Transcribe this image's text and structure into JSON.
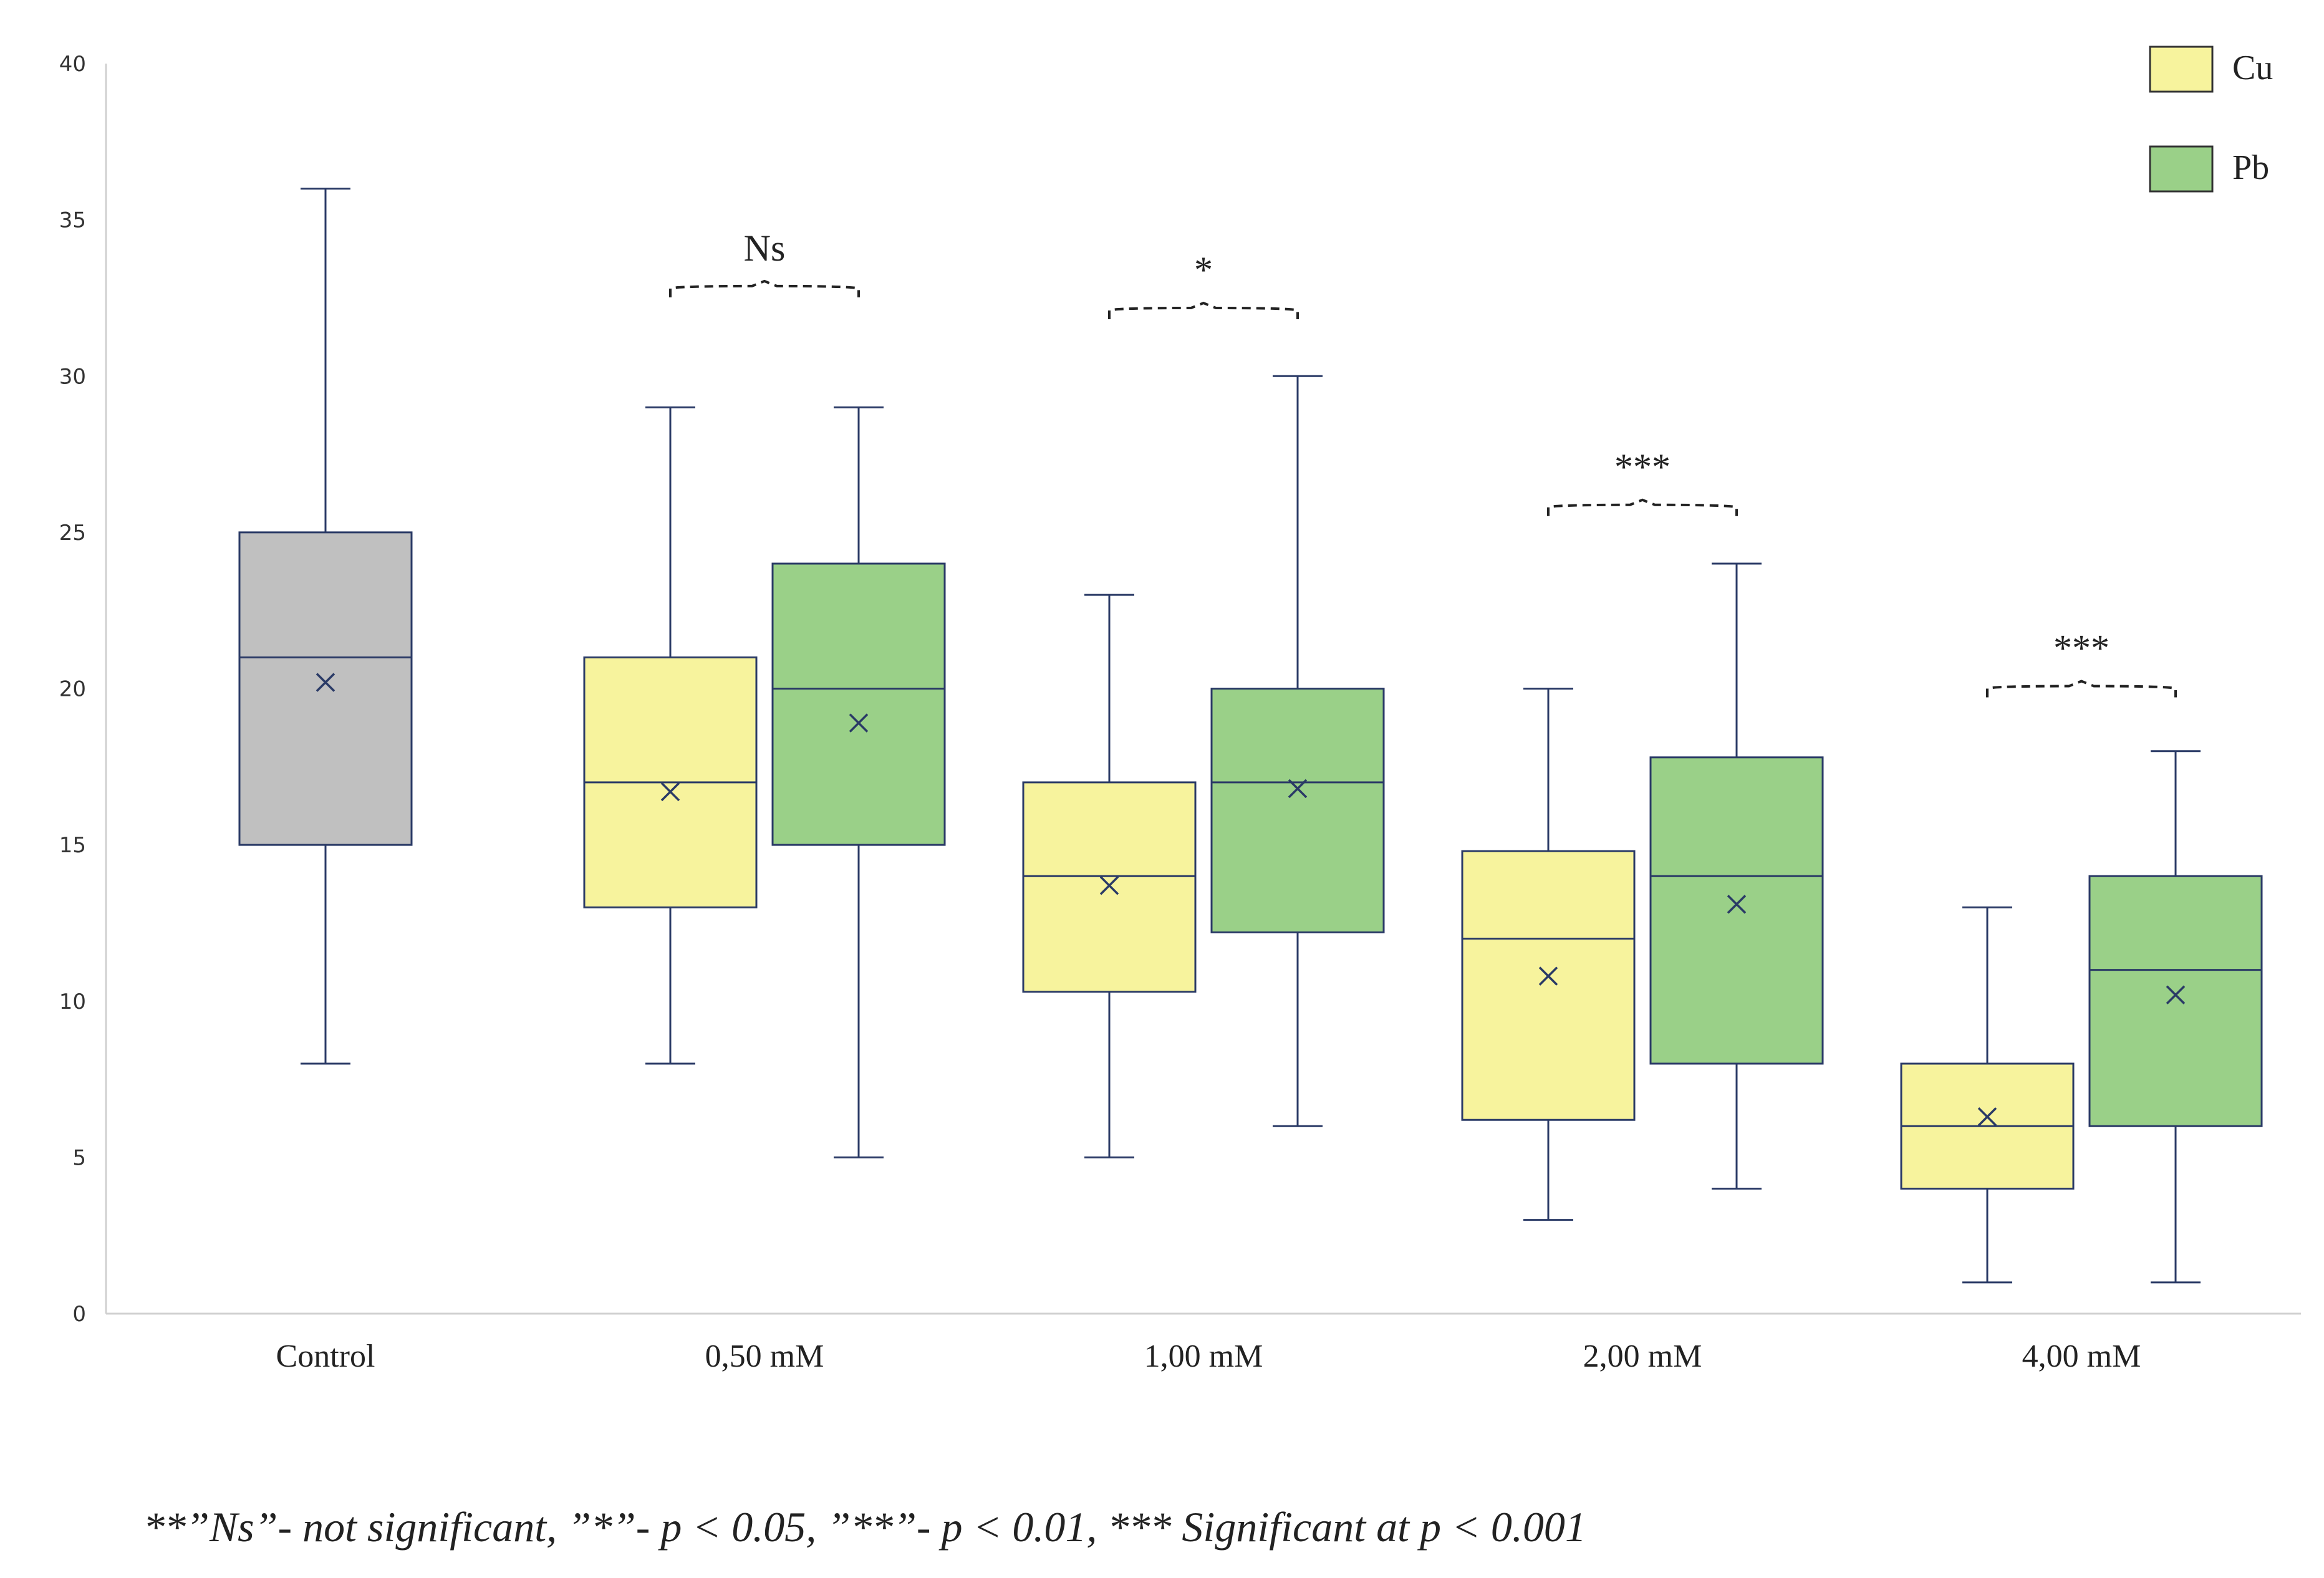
{
  "chart_data": {
    "type": "box",
    "ylim": [
      0,
      40
    ],
    "yticks": [
      0,
      5,
      10,
      15,
      20,
      25,
      30,
      35,
      40
    ],
    "categories": [
      "Control",
      "0,50 mM",
      "1,00 mM",
      "2,00 mM",
      "4,00 mM"
    ],
    "legend": {
      "position": "top-right",
      "entries": [
        {
          "label": "Cu",
          "color": "#f7f39d"
        },
        {
          "label": "Pb",
          "color": "#9ad088"
        }
      ]
    },
    "control_color": "#c0c0c0",
    "boxes": [
      {
        "category": "Control",
        "series": "",
        "min": 8,
        "q1": 15,
        "median": 21,
        "q3": 25,
        "max": 36,
        "mean": 20.2
      },
      {
        "category": "0,50 mM",
        "series": "Cu",
        "min": 8,
        "q1": 13,
        "median": 17,
        "q3": 21,
        "max": 29,
        "mean": 16.7
      },
      {
        "category": "0,50 mM",
        "series": "Pb",
        "min": 5,
        "q1": 15,
        "median": 20,
        "q3": 24,
        "max": 29,
        "mean": 18.9
      },
      {
        "category": "1,00 mM",
        "series": "Cu",
        "min": 5,
        "q1": 10.3,
        "median": 14,
        "q3": 17,
        "max": 23,
        "mean": 13.7
      },
      {
        "category": "1,00 mM",
        "series": "Pb",
        "min": 6,
        "q1": 12.2,
        "median": 17,
        "q3": 20,
        "max": 30,
        "mean": 16.8
      },
      {
        "category": "2,00 mM",
        "series": "Cu",
        "min": 3,
        "q1": 6.2,
        "median": 12,
        "q3": 14.8,
        "max": 20,
        "mean": 10.8
      },
      {
        "category": "2,00 mM",
        "series": "Pb",
        "min": 4,
        "q1": 8,
        "median": 14,
        "q3": 17.8,
        "max": 24,
        "mean": 13.1
      },
      {
        "category": "4,00 mM",
        "series": "Cu",
        "min": 1,
        "q1": 4,
        "median": 6,
        "q3": 8,
        "max": 13,
        "mean": 6.3
      },
      {
        "category": "4,00 mM",
        "series": "Pb",
        "min": 1,
        "q1": 6,
        "median": 11,
        "q3": 14,
        "max": 18,
        "mean": 10.2
      }
    ],
    "significance": [
      {
        "category": "0,50 mM",
        "label": "Ns",
        "level": 32.8
      },
      {
        "category": "1,00 mM",
        "label": "*",
        "level": 32.1
      },
      {
        "category": "2,00 mM",
        "label": "***",
        "level": 25.8
      },
      {
        "category": "4,00 mM",
        "label": "***",
        "level": 20.0
      }
    ]
  },
  "footnote": "**”Ns”- not significant, ”*”- p < 0.05, ”**”- p < 0.01, *** Significant at p < 0.001"
}
